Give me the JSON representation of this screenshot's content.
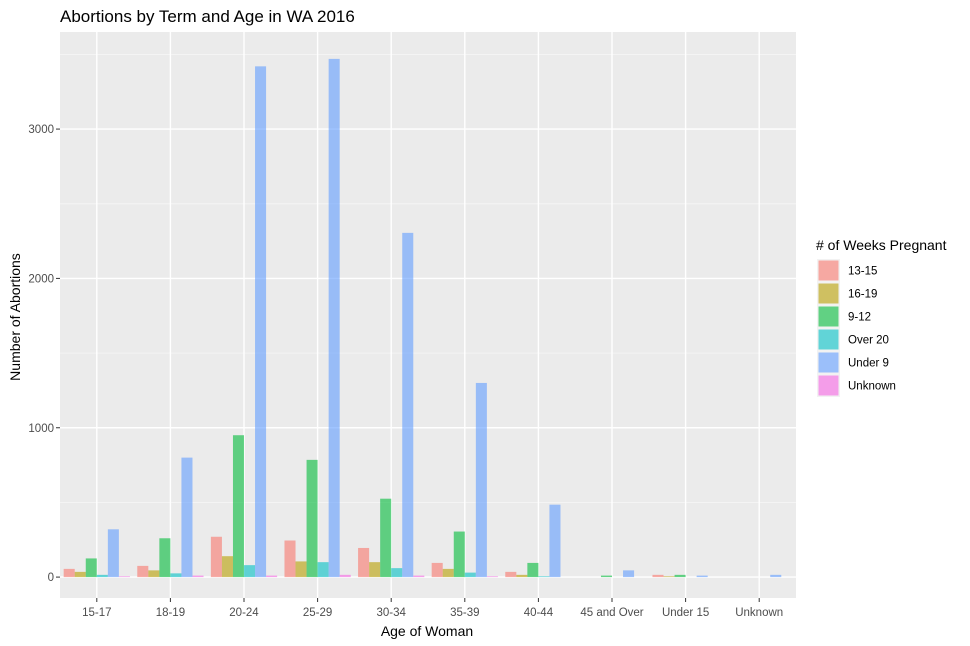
{
  "chart_data": {
    "type": "bar",
    "title": "Abortions by Term and Age in WA 2016",
    "xlabel": "Age of Woman",
    "ylabel": "Number of Abortions",
    "ylim": [
      -140,
      3650
    ],
    "yticks": [
      0,
      1000,
      2000,
      3000
    ],
    "grid": true,
    "legend_title": "# of Weeks Pregnant",
    "legend_position": "right",
    "categories": [
      "15-17",
      "18-19",
      "20-24",
      "25-29",
      "30-34",
      "35-39",
      "40-44",
      "45 and Over",
      "Under 15",
      "Unknown"
    ],
    "series": [
      {
        "name": "13-15",
        "color": "#F8766D",
        "values": [
          55,
          75,
          270,
          245,
          195,
          95,
          35,
          0,
          15,
          0
        ]
      },
      {
        "name": "16-19",
        "color": "#B79F00",
        "values": [
          35,
          45,
          140,
          105,
          100,
          55,
          15,
          0,
          5,
          0
        ]
      },
      {
        "name": "9-12",
        "color": "#00BA38",
        "values": [
          125,
          260,
          950,
          785,
          525,
          305,
          95,
          10,
          15,
          0
        ]
      },
      {
        "name": "Over 20",
        "color": "#00BFC4",
        "values": [
          15,
          25,
          80,
          100,
          60,
          30,
          5,
          0,
          0,
          0
        ]
      },
      {
        "name": "Under 9",
        "color": "#619CFF",
        "values": [
          320,
          800,
          3420,
          3470,
          2305,
          1300,
          485,
          45,
          10,
          15
        ]
      },
      {
        "name": "Unknown",
        "color": "#F564E3",
        "values": [
          5,
          10,
          10,
          15,
          10,
          5,
          0,
          0,
          0,
          0
        ]
      }
    ]
  }
}
